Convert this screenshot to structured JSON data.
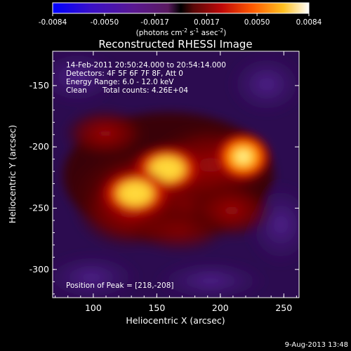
{
  "colorbar": {
    "ticks": [
      "-0.0084",
      "-0.0050",
      "-0.0017",
      "0.0017",
      "0.0050",
      "0.0084"
    ],
    "range": [
      -0.0084,
      0.0084
    ],
    "units_prefix": "(photons cm",
    "units_exp1": "-2",
    "units_mid1": " s",
    "units_exp2": "-1",
    "units_mid2": " asec",
    "units_exp3": "-2",
    "units_suffix": ")"
  },
  "chart_data": {
    "type": "heatmap",
    "title": "Reconstructed RHESSI Image",
    "xlabel": "Heliocentric X (arcsec)",
    "ylabel": "Heliocentric Y (arcsec)",
    "xlim": [
      68,
      262
    ],
    "ylim": [
      -323,
      -122
    ],
    "xticks": [
      "100",
      "150",
      "200",
      "250"
    ],
    "xtick_values": [
      100,
      150,
      200,
      250
    ],
    "yticks": [
      "-150",
      "-200",
      "-250",
      "-300"
    ],
    "ytick_values": [
      -150,
      -200,
      -250,
      -300
    ],
    "colormap": "RHESSI red temperature (blue-violet to white)",
    "sources": [
      {
        "x": 218,
        "y": -208,
        "intensity": 0.0084
      },
      {
        "x": 158,
        "y": -218,
        "intensity": 0.007
      },
      {
        "x": 133,
        "y": -238,
        "intensity": 0.0065
      }
    ],
    "annotations": {
      "time": "14-Feb-2011 20:50:24.000 to 20:54:14.000",
      "detectors": "Detectors: 4F 5F 6F 7F 8F, Att 0",
      "energy": "Energy Range: 6.0 - 12.0 keV",
      "method": "Clean",
      "counts": "Total counts: 4.26E+04",
      "peak": "Position of Peak = [218,-208]"
    }
  },
  "footer": {
    "timestamp": "9-Aug-2013 13:48"
  }
}
